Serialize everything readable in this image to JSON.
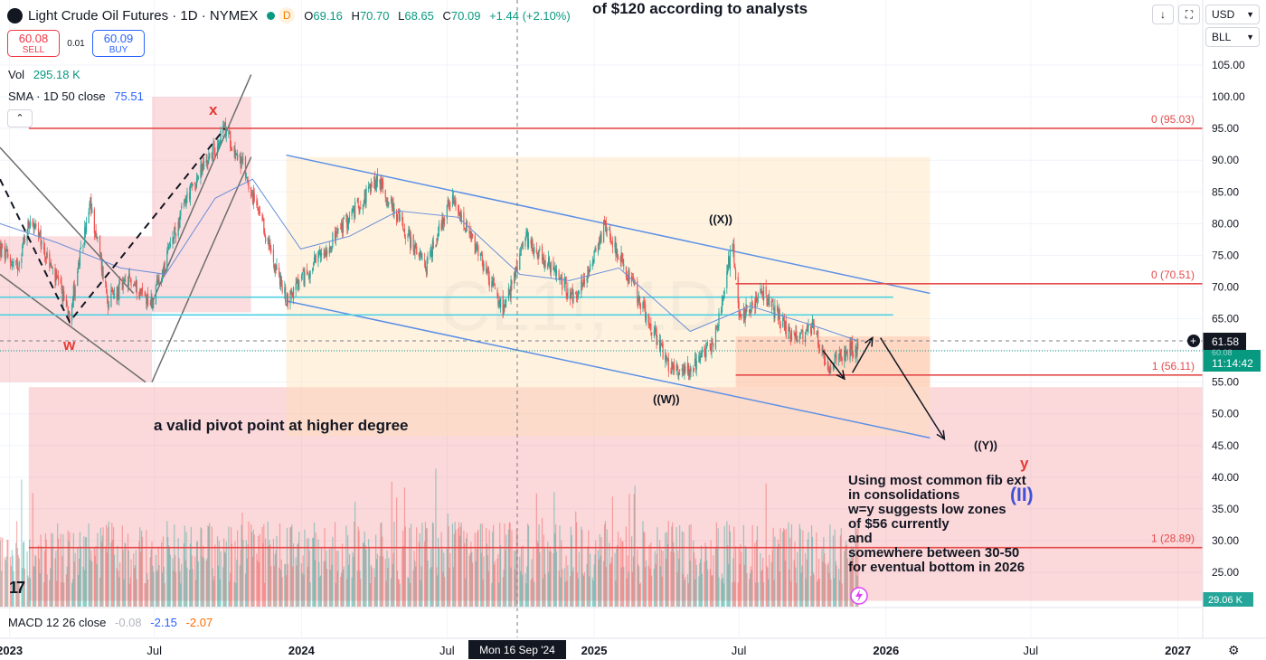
{
  "header": {
    "symbol": "Light Crude Oil Futures · 1D · NYMEX",
    "realtime_badge": "D",
    "ohlc": [
      {
        "label": "O",
        "value": "69.16"
      },
      {
        "label": "H",
        "value": "70.70"
      },
      {
        "label": "L",
        "value": "68.65"
      },
      {
        "label": "C",
        "value": "70.09"
      }
    ],
    "change": "+1.44 (+2.10%)",
    "top_overlay_text": "of $120 according to analysts"
  },
  "trade": {
    "sell_price": "60.08",
    "sell_label": "SELL",
    "spread": "0.01",
    "buy_price": "60.09",
    "buy_label": "BUY"
  },
  "indicators": {
    "vol_label": "Vol",
    "vol_value": "295.18 K",
    "sma_label": "SMA · 1D 50 close",
    "sma_value": "75.51",
    "collapse_icon": "chevron-up-icon"
  },
  "right_controls": {
    "currency": "USD",
    "unit": "BLL",
    "icons": [
      "download-icon",
      "fullscreen-icon",
      "camera-icon"
    ]
  },
  "axis": {
    "y_ticks": [
      "105.00",
      "100.00",
      "95.00",
      "90.00",
      "85.00",
      "80.00",
      "75.00",
      "70.00",
      "65.00",
      "60.00",
      "55.00",
      "50.00",
      "45.00",
      "40.00",
      "35.00",
      "30.00",
      "25.00"
    ],
    "x_ticks": [
      "2023",
      "Jul",
      "2024",
      "Jul",
      "2025",
      "Jul",
      "2026",
      "Jul",
      "2027"
    ],
    "crosshair_date": "Mon 16 Sep '24",
    "price_badge": "61.58",
    "last_badge": "60.08",
    "countdown": "11:14:42",
    "volume_badge": "29.06 K"
  },
  "fib_labels": [
    {
      "label": "0 (95.03)",
      "price": 95.03
    },
    {
      "label": "0 (70.51)",
      "price": 70.51
    },
    {
      "label": "1 (56.11)",
      "price": 56.11
    },
    {
      "label": "1 (28.89)",
      "price": 28.89
    }
  ],
  "wave_labels": {
    "w": "w",
    "x": "x",
    "y": "y",
    "X": "((X))",
    "W": "((W))",
    "Y": "((Y))",
    "II": "(II)"
  },
  "annotations": {
    "pivot": "a valid pivot point at higher degree",
    "note_lines": [
      "Using most common fib ext",
      "in consolidations",
      "w=y suggests low zones",
      "of $56 currently",
      "and",
      "somewhere between 30-50",
      "for eventual bottom in 2026"
    ]
  },
  "watermark": "CL1!, 1D",
  "macd": {
    "label": "MACD 12 26 close",
    "v1": "-0.08",
    "v2": "-2.15",
    "v3": "-2.07"
  },
  "chart_data": {
    "type": "candlestick",
    "x_range": [
      "2022-12-20",
      "2027-02-01"
    ],
    "y_range": [
      20.5,
      110
    ],
    "price_points": [
      [
        "2022-12-20",
        76
      ],
      [
        "2023-01-10",
        73
      ],
      [
        "2023-01-27",
        81
      ],
      [
        "2023-03-17",
        66
      ],
      [
        "2023-04-12",
        83
      ],
      [
        "2023-05-04",
        68
      ],
      [
        "2023-06-01",
        71
      ],
      [
        "2023-06-28",
        67.5
      ],
      [
        "2023-08-10",
        84
      ],
      [
        "2023-09-27",
        95
      ],
      [
        "2023-10-20",
        89
      ],
      [
        "2023-12-13",
        68
      ],
      [
        "2024-01-20",
        74
      ],
      [
        "2024-04-05",
        87
      ],
      [
        "2024-06-04",
        73
      ],
      [
        "2024-07-05",
        84
      ],
      [
        "2024-08-10",
        75
      ],
      [
        "2024-09-10",
        66
      ],
      [
        "2024-10-07",
        78
      ],
      [
        "2024-12-10",
        68
      ],
      [
        "2025-01-15",
        80
      ],
      [
        "2025-03-05",
        66
      ],
      [
        "2025-04-07",
        57
      ],
      [
        "2025-05-05",
        57.5
      ],
      [
        "2025-06-01",
        62
      ],
      [
        "2025-06-23",
        77
      ],
      [
        "2025-07-01",
        65
      ],
      [
        "2025-08-01",
        69
      ],
      [
        "2025-09-05",
        62
      ],
      [
        "2025-10-01",
        64
      ],
      [
        "2025-10-21",
        57
      ],
      [
        "2025-11-10",
        60
      ],
      [
        "2025-11-27",
        60.08
      ]
    ],
    "sma50_points": [
      [
        "2022-12-20",
        80
      ],
      [
        "2023-03-01",
        77
      ],
      [
        "2023-05-20",
        73
      ],
      [
        "2023-07-15",
        72
      ],
      [
        "2023-09-15",
        84
      ],
      [
        "2023-11-01",
        87
      ],
      [
        "2023-12-31",
        76
      ],
      [
        "2024-03-01",
        78
      ],
      [
        "2024-05-01",
        82
      ],
      [
        "2024-07-15",
        81
      ],
      [
        "2024-09-30",
        72
      ],
      [
        "2024-12-01",
        71
      ],
      [
        "2025-02-01",
        73
      ],
      [
        "2025-05-01",
        63
      ],
      [
        "2025-07-15",
        67
      ],
      [
        "2025-09-30",
        64
      ],
      [
        "2025-11-27",
        61.5
      ]
    ],
    "horizontal_levels": [
      {
        "price": 95.03,
        "from": "2023-01-25",
        "to": "2027-02-01",
        "color": "#e54b4b"
      },
      {
        "price": 70.51,
        "from": "2025-06-27",
        "to": "2027-02-01",
        "color": "#e54b4b"
      },
      {
        "price": 56.11,
        "from": "2025-06-27",
        "to": "2027-02-01",
        "color": "#e54b4b"
      },
      {
        "price": 28.89,
        "from": "2023-01-25",
        "to": "2027-02-01",
        "color": "#e54b4b"
      },
      {
        "price": 68.4,
        "from": "2022-12-20",
        "to": "2026-01-10",
        "color": "#4dd0e1"
      },
      {
        "price": 65.6,
        "from": "2022-12-20",
        "to": "2026-01-10",
        "color": "#4dd0e1"
      }
    ],
    "zones": [
      {
        "from": "2023-01-25",
        "to": "2027-02-01",
        "top": 54.2,
        "bottom": 20.5,
        "color": "rgba(244,143,149,0.35)"
      },
      {
        "from": "2023-12-13",
        "to": "2026-02-25",
        "top": 90.5,
        "bottom": 46.5,
        "color": "rgba(255,224,178,0.40)"
      },
      {
        "from": "2025-06-27",
        "to": "2026-02-25",
        "top": 62.2,
        "bottom": 54.2,
        "color": "rgba(255,183,159,0.45)"
      },
      {
        "from": "2022-12-20",
        "to": "2023-06-28",
        "top": 78,
        "bottom": 55,
        "color": "rgba(244,143,149,0.30)"
      },
      {
        "from": "2023-06-28",
        "to": "2023-10-30",
        "top": 100,
        "bottom": 66,
        "color": "rgba(244,143,149,0.30)"
      }
    ],
    "channel_lines": [
      {
        "from": [
          "2023-12-13",
          90.8
        ],
        "to": [
          "2026-02-25",
          69.0
        ],
        "color": "#5c8fe6"
      },
      {
        "from": [
          "2023-12-13",
          67.8
        ],
        "to": [
          "2026-02-25",
          46.2
        ],
        "color": "#5c8fe6"
      },
      {
        "from": [
          "2022-12-20",
          92.0
        ],
        "to": [
          "2023-06-05",
          69.0
        ],
        "color": "#6d6d6d"
      },
      {
        "from": [
          "2022-12-20",
          72.0
        ],
        "to": [
          "2023-06-20",
          55.0
        ],
        "color": "#6d6d6d"
      },
      {
        "from": [
          "2023-06-28",
          67.5
        ],
        "to": [
          "2023-10-30",
          103.5
        ],
        "color": "#6d6d6d"
      },
      {
        "from": [
          "2023-06-28",
          55.0
        ],
        "to": [
          "2023-10-30",
          90.5
        ],
        "color": "#6d6d6d"
      }
    ],
    "dashed_paths": [
      [
        [
          "2022-12-20",
          87
        ],
        [
          "2023-03-17",
          64.5
        ],
        [
          "2023-09-27",
          95
        ]
      ]
    ],
    "arrow_paths": [
      [
        [
          "2025-10-14",
          60
        ],
        [
          "2025-11-10",
          55.5
        ]
      ],
      [
        [
          "2025-11-20",
          56.5
        ],
        [
          "2025-12-15",
          62
        ]
      ],
      [
        [
          "2025-12-25",
          62
        ],
        [
          "2026-03-15",
          46
        ]
      ]
    ],
    "volume_scale_max": 420
  }
}
